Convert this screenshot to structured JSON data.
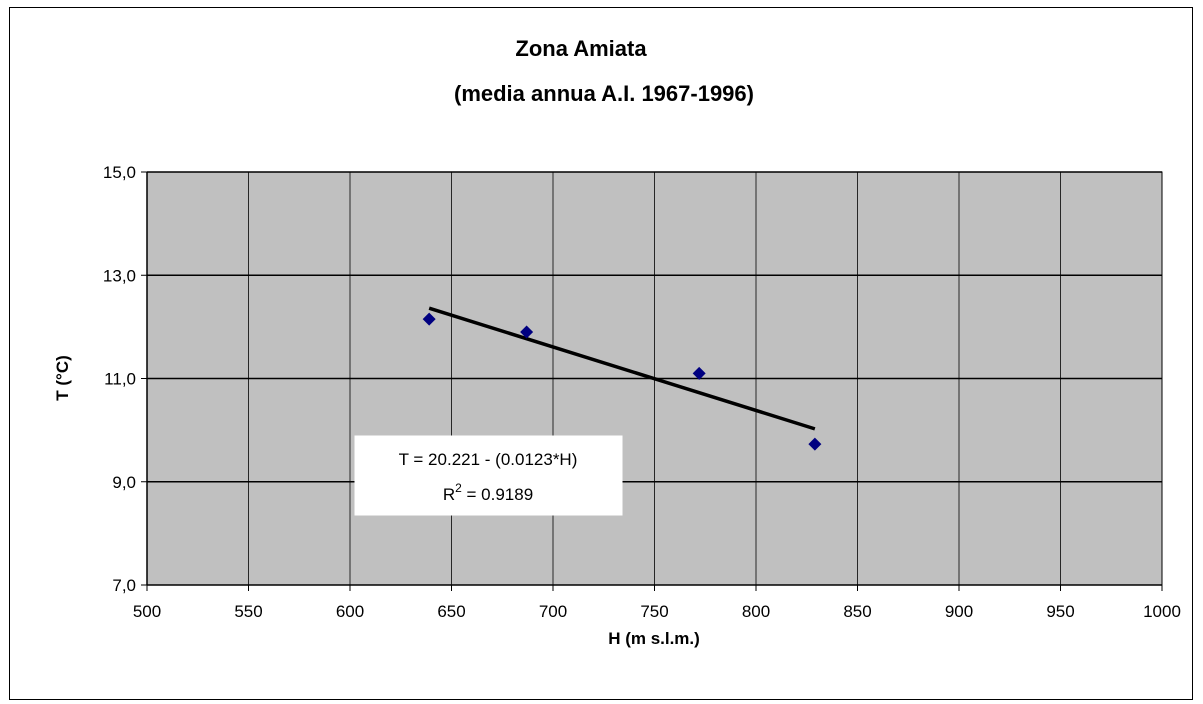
{
  "chart_data": {
    "type": "scatter",
    "title": "Zona Amiata",
    "subtitle": "(media annua A.I. 1967-1996)",
    "xlabel": "H (m s.l.m.)",
    "ylabel": "T (°C)",
    "xlim": [
      500,
      1000
    ],
    "ylim": [
      7,
      15
    ],
    "x_ticks": [
      "500",
      "550",
      "600",
      "650",
      "700",
      "750",
      "800",
      "850",
      "900",
      "950",
      "1000"
    ],
    "y_ticks": [
      "7,0",
      "9,0",
      "11,0",
      "13,0",
      "15,0"
    ],
    "grid": true,
    "legend": "none",
    "series": [
      {
        "points": [
          {
            "x": 639,
            "y": 12.15
          },
          {
            "x": 687,
            "y": 11.9
          },
          {
            "x": 772,
            "y": 11.1
          },
          {
            "x": 829,
            "y": 9.73
          }
        ],
        "marker": "diamond",
        "color": "#000080"
      }
    ],
    "trendline": {
      "type": "linear",
      "intercept": 20.221,
      "slope": -0.0123,
      "x_range": [
        639,
        829
      ],
      "color": "#000000"
    },
    "annotation": {
      "equation": "T = 20.221 - (0.0123*H)",
      "r2_prefix": "R",
      "r2_sup": "2",
      "r2_value": " = 0.9189"
    },
    "colors": {
      "plot_background": "#c0c0c0",
      "gridline": "#000000",
      "marker": "#000080"
    }
  }
}
